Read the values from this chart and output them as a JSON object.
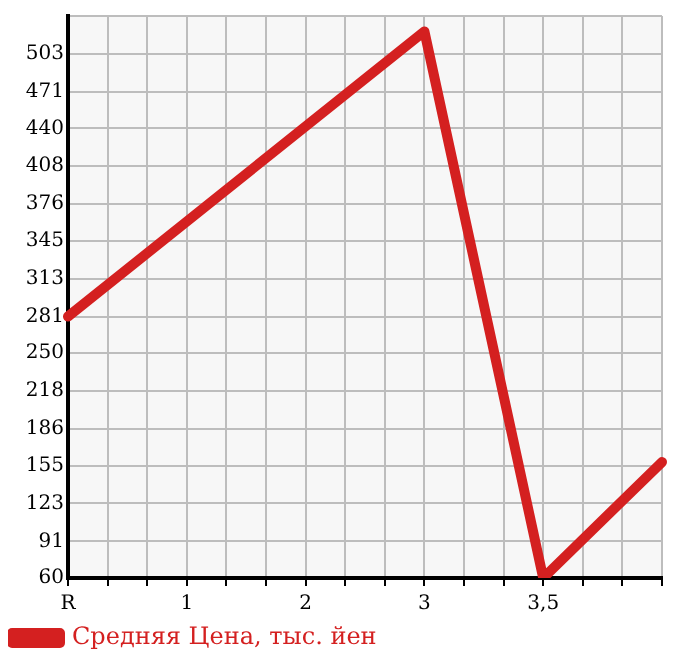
{
  "chart_data": {
    "type": "line",
    "categories": [
      "R",
      null,
      null,
      "1",
      null,
      null,
      "2",
      null,
      null,
      "3",
      null,
      null,
      "3,5",
      null,
      null,
      null
    ],
    "series": [
      {
        "name": "Средняя Цена, тыс. йен",
        "color": "#d42020",
        "values": [
          281,
          null,
          null,
          null,
          null,
          null,
          null,
          null,
          null,
          522,
          null,
          null,
          60,
          null,
          null,
          158
        ]
      }
    ],
    "ylim": [
      60,
      535
    ],
    "yticks": [
      60,
      91,
      123,
      155,
      186,
      218,
      250,
      281,
      313,
      345,
      376,
      408,
      440,
      471,
      503,
      {
        "value": 535,
        "label": null
      }
    ],
    "grid": true,
    "legend": "bottom left",
    "marker": "none",
    "line_style": "solid"
  }
}
